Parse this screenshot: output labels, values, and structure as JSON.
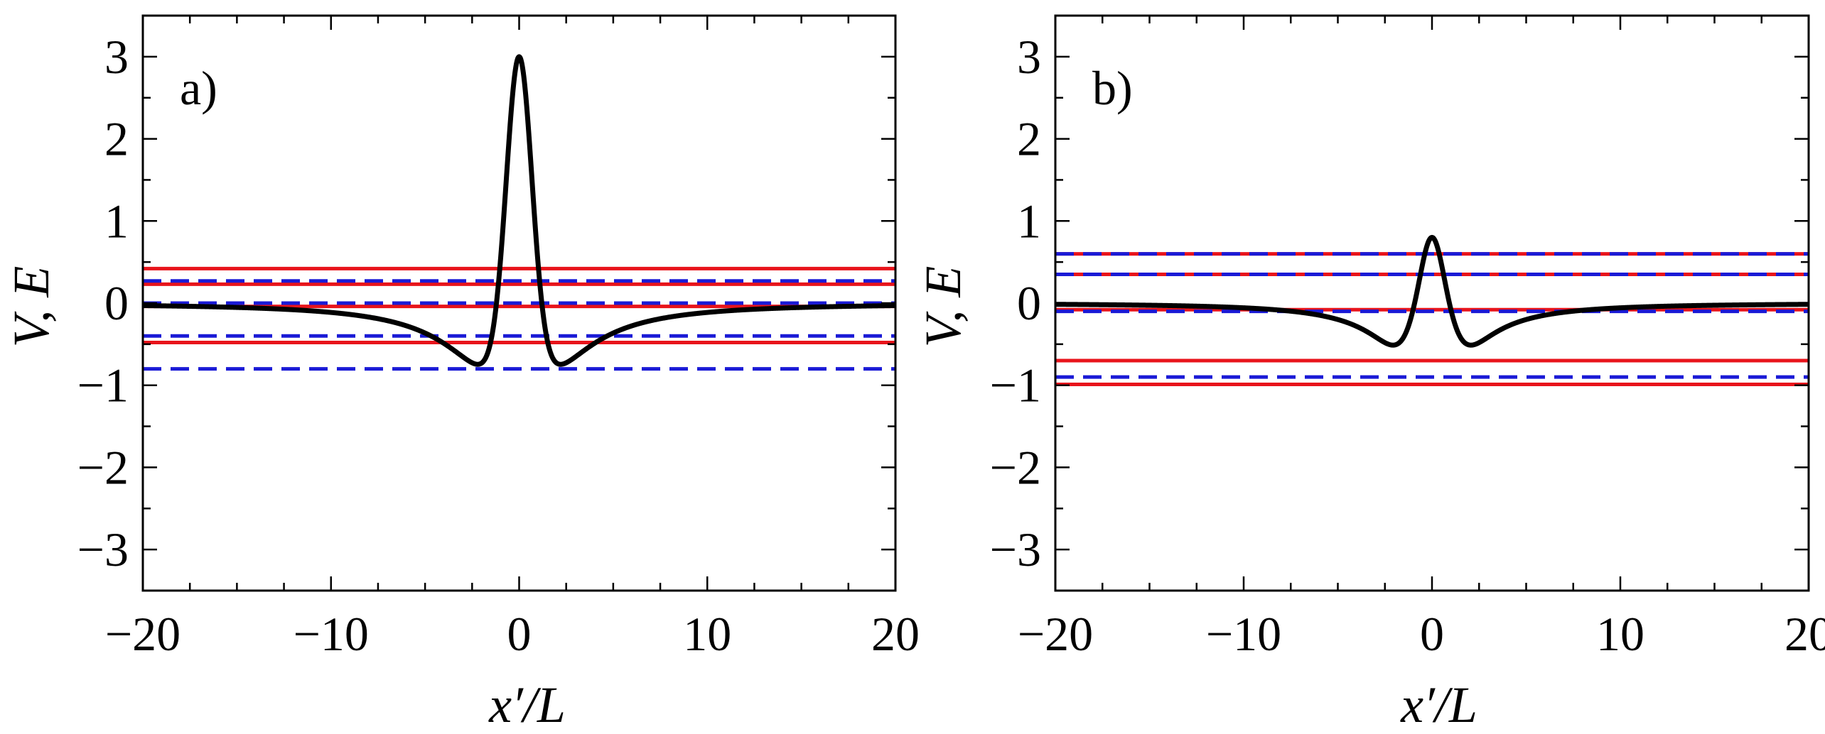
{
  "chart_data": [
    {
      "type": "line",
      "panel_label": "a)",
      "xlabel": "x′/L",
      "ylabel": "V, E",
      "xlim": [
        -20,
        20
      ],
      "ylim": [
        -3.5,
        3.5
      ],
      "xticks": [
        -20,
        -10,
        0,
        10,
        20
      ],
      "yticks": [
        -3,
        -2,
        -1,
        0,
        1,
        2,
        3
      ],
      "xtick_labels": [
        "−20",
        "−10",
        "0",
        "10",
        "20"
      ],
      "ytick_labels": [
        "−3",
        "−2",
        "−1",
        "0",
        "1",
        "2",
        "3"
      ],
      "potential": {
        "name": "V",
        "color": "#000000",
        "form": "A*exp(-x^2/w^2) + B*x^2/(x^2+x0^2)^2",
        "A": 3.0,
        "w": 0.95,
        "B": -12.26,
        "x0": 2.0
      },
      "series": [
        {
          "name": "E (solid)",
          "style": "solid",
          "color": "#e8141b",
          "values": [
            0.42,
            0.23,
            -0.04,
            -0.48
          ]
        },
        {
          "name": "E (dashed)",
          "style": "dashed",
          "color": "#1a1ad6",
          "values": [
            0.27,
            0.0,
            -0.4,
            -0.8
          ]
        }
      ]
    },
    {
      "type": "line",
      "panel_label": "b)",
      "xlabel": "x′/L",
      "ylabel": "V, E",
      "xlim": [
        -20,
        20
      ],
      "ylim": [
        -3.5,
        3.5
      ],
      "xticks": [
        -20,
        -10,
        0,
        10,
        20
      ],
      "yticks": [
        -3,
        -2,
        -1,
        0,
        1,
        2,
        3
      ],
      "xtick_labels": [
        "−20",
        "−10",
        "0",
        "10",
        "20"
      ],
      "ytick_labels": [
        "−3",
        "−2",
        "−1",
        "0",
        "1",
        "2",
        "3"
      ],
      "potential": {
        "name": "V",
        "color": "#000000",
        "form": "A*exp(-x^2/w^2) + B*x^2/(x^2+x0^2)^2",
        "A": 0.8,
        "w": 1.3,
        "B": -6.0,
        "x0": 1.55
      },
      "series": [
        {
          "name": "E (solid)",
          "style": "solid",
          "color": "#e8141b",
          "values": [
            0.6,
            0.35,
            -0.08,
            -0.7,
            -0.99
          ]
        },
        {
          "name": "E (dashed)",
          "style": "dashed",
          "color": "#1a1ad6",
          "values": [
            0.6,
            0.35,
            -0.1,
            -0.9
          ]
        }
      ]
    }
  ]
}
